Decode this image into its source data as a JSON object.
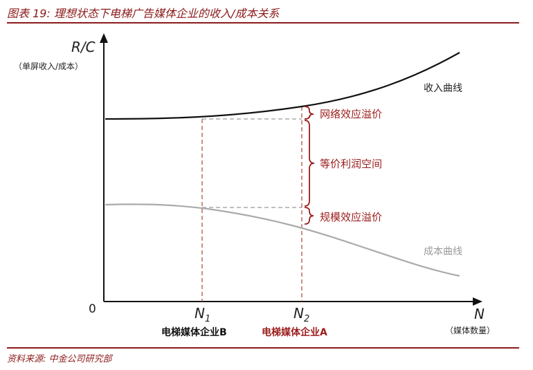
{
  "header": {
    "title": "图表 19: 理想状态下电梯广告媒体企业的收入/成本关系"
  },
  "footer": {
    "source": "资料来源: 中金公司研究部"
  },
  "diagram": {
    "y_axis_label": "R/C",
    "y_axis_sublabel": "（单屏收入/成本）",
    "origin_label": "0",
    "x_axis_label": "N",
    "x_axis_sublabel": "（媒体数量）",
    "revenue_curve_label": "收入曲线",
    "cost_curve_label": "成本曲线",
    "n1_main": "N",
    "n1_sub": "1",
    "n2_main": "N",
    "n2_sub": "2",
    "company_b": "电梯媒体企业B",
    "company_a": "电梯媒体企业A",
    "bracket_top_label": "网络效应溢价",
    "bracket_mid_label": "等价利润空间",
    "bracket_bottom_label": "规模效应溢价"
  },
  "colors": {
    "accent": "#8b1a1a",
    "revenue_curve": "#111111",
    "cost_curve": "#aaaaaa",
    "dashed_red": "#b0604a",
    "dashed_gray": "#aaaaaa"
  }
}
